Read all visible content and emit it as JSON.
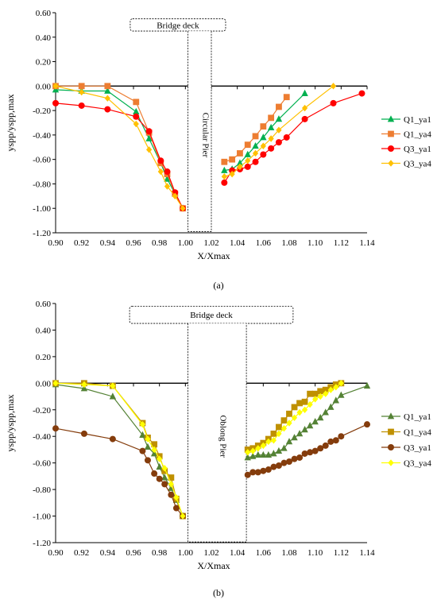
{
  "chart_data": [
    {
      "type": "line",
      "panel_label": "(a)",
      "xlabel": "X/Xmax",
      "ylabel": "yspp/yspp,max",
      "xlim": [
        0.9,
        1.14
      ],
      "ylim": [
        -1.2,
        0.6
      ],
      "x_ticks": [
        "0.90",
        "0.92",
        "0.94",
        "0.96",
        "0.98",
        "1.00",
        "1.02",
        "1.04",
        "1.06",
        "1.08",
        "1.10",
        "1.12",
        "1.14"
      ],
      "y_ticks": [
        "0.60",
        "0.40",
        "0.20",
        "0.00",
        "-0.20",
        "-0.40",
        "-0.60",
        "-0.80",
        "-1.00",
        "-1.20"
      ],
      "grid": false,
      "legend_position": "right",
      "deck_label": "Bridge deck",
      "pier_label": "Circular Pier",
      "series": [
        {
          "name": "Q1_ya1",
          "color": "#00b050",
          "marker": "triangle",
          "points": [
            [
              0.9,
              -0.03
            ],
            [
              0.92,
              -0.04
            ],
            [
              0.94,
              -0.04
            ],
            [
              0.962,
              -0.21
            ],
            [
              0.972,
              -0.43
            ],
            [
              0.981,
              -0.63
            ],
            [
              0.986,
              -0.76
            ],
            [
              0.992,
              -0.88
            ],
            [
              0.998,
              -1.0
            ],
            [
              1.03,
              -0.69
            ],
            [
              1.036,
              -0.68
            ],
            [
              1.042,
              -0.63
            ],
            [
              1.048,
              -0.56
            ],
            [
              1.054,
              -0.49
            ],
            [
              1.06,
              -0.42
            ],
            [
              1.066,
              -0.34
            ],
            [
              1.072,
              -0.27
            ],
            [
              1.092,
              -0.06
            ]
          ]
        },
        {
          "name": "Q1_ya4",
          "color": "#ed7d31",
          "marker": "square",
          "points": [
            [
              0.9,
              0.0
            ],
            [
              0.92,
              0.0
            ],
            [
              0.94,
              0.0
            ],
            [
              0.962,
              -0.13
            ],
            [
              0.972,
              -0.38
            ],
            [
              0.981,
              -0.63
            ],
            [
              0.986,
              -0.72
            ],
            [
              0.992,
              -0.88
            ],
            [
              0.998,
              -1.0
            ],
            [
              1.03,
              -0.62
            ],
            [
              1.036,
              -0.6
            ],
            [
              1.042,
              -0.55
            ],
            [
              1.048,
              -0.48
            ],
            [
              1.054,
              -0.41
            ],
            [
              1.06,
              -0.33
            ],
            [
              1.066,
              -0.26
            ],
            [
              1.072,
              -0.17
            ],
            [
              1.078,
              -0.09
            ]
          ]
        },
        {
          "name": "Q3_ya1",
          "color": "#ff0000",
          "marker": "circle",
          "points": [
            [
              0.9,
              -0.14
            ],
            [
              0.92,
              -0.16
            ],
            [
              0.94,
              -0.19
            ],
            [
              0.962,
              -0.25
            ],
            [
              0.972,
              -0.37
            ],
            [
              0.981,
              -0.61
            ],
            [
              0.986,
              -0.7
            ],
            [
              0.992,
              -0.87
            ],
            [
              0.998,
              -1.0
            ],
            [
              1.03,
              -0.79
            ],
            [
              1.036,
              -0.69
            ],
            [
              1.042,
              -0.68
            ],
            [
              1.048,
              -0.66
            ],
            [
              1.054,
              -0.62
            ],
            [
              1.06,
              -0.56
            ],
            [
              1.066,
              -0.51
            ],
            [
              1.072,
              -0.46
            ],
            [
              1.078,
              -0.42
            ],
            [
              1.092,
              -0.27
            ],
            [
              1.114,
              -0.14
            ],
            [
              1.136,
              -0.06
            ]
          ]
        },
        {
          "name": "Q3_ya4",
          "color": "#ffc000",
          "marker": "diamond",
          "points": [
            [
              0.9,
              0.0
            ],
            [
              0.92,
              -0.05
            ],
            [
              0.94,
              -0.1
            ],
            [
              0.962,
              -0.31
            ],
            [
              0.972,
              -0.52
            ],
            [
              0.981,
              -0.7
            ],
            [
              0.986,
              -0.82
            ],
            [
              0.992,
              -0.9
            ],
            [
              0.998,
              -1.0
            ],
            [
              1.03,
              -0.74
            ],
            [
              1.036,
              -0.72
            ],
            [
              1.042,
              -0.66
            ],
            [
              1.048,
              -0.61
            ],
            [
              1.054,
              -0.55
            ],
            [
              1.06,
              -0.49
            ],
            [
              1.066,
              -0.43
            ],
            [
              1.072,
              -0.36
            ],
            [
              1.092,
              -0.18
            ],
            [
              1.114,
              0.0
            ]
          ]
        }
      ]
    },
    {
      "type": "line",
      "panel_label": "(b)",
      "xlabel": "X/Xmax",
      "ylabel": "yspp/yspp,max",
      "xlim": [
        0.9,
        1.14
      ],
      "ylim": [
        -1.2,
        0.6
      ],
      "x_ticks": [
        "0.90",
        "0.92",
        "0.94",
        "0.96",
        "0.98",
        "1.00",
        "1.02",
        "1.04",
        "1.06",
        "1.08",
        "1.10",
        "1.12",
        "1.14"
      ],
      "y_ticks": [
        "0.60",
        "0.40",
        "0.20",
        "0.00",
        "-0.20",
        "-0.40",
        "-0.60",
        "-0.80",
        "-1.00",
        "-1.20"
      ],
      "grid": false,
      "legend_position": "right",
      "deck_label": "Bridge deck",
      "pier_label": "Oblong Pier",
      "series": [
        {
          "name": "Q1_ya1",
          "color": "#548235",
          "marker": "triangle",
          "points": [
            [
              0.9,
              -0.01
            ],
            [
              0.922,
              -0.04
            ],
            [
              0.944,
              -0.1
            ],
            [
              0.967,
              -0.39
            ],
            [
              0.971,
              -0.48
            ],
            [
              0.976,
              -0.53
            ],
            [
              0.98,
              -0.63
            ],
            [
              0.984,
              -0.71
            ],
            [
              0.989,
              -0.79
            ],
            [
              0.993,
              -0.88
            ],
            [
              0.998,
              -1.0
            ],
            [
              1.048,
              -0.56
            ],
            [
              1.052,
              -0.55
            ],
            [
              1.056,
              -0.54
            ],
            [
              1.06,
              -0.54
            ],
            [
              1.064,
              -0.54
            ],
            [
              1.068,
              -0.53
            ],
            [
              1.072,
              -0.51
            ],
            [
              1.076,
              -0.49
            ],
            [
              1.08,
              -0.44
            ],
            [
              1.084,
              -0.41
            ],
            [
              1.088,
              -0.38
            ],
            [
              1.092,
              -0.35
            ],
            [
              1.096,
              -0.32
            ],
            [
              1.1,
              -0.29
            ],
            [
              1.104,
              -0.26
            ],
            [
              1.108,
              -0.22
            ],
            [
              1.112,
              -0.18
            ],
            [
              1.116,
              -0.13
            ],
            [
              1.12,
              -0.09
            ],
            [
              1.14,
              -0.02
            ]
          ]
        },
        {
          "name": "Q1_ya4",
          "color": "#bf9000",
          "marker": "square",
          "points": [
            [
              0.9,
              0.0
            ],
            [
              0.922,
              0.0
            ],
            [
              0.944,
              -0.02
            ],
            [
              0.967,
              -0.3
            ],
            [
              0.971,
              -0.41
            ],
            [
              0.976,
              -0.46
            ],
            [
              0.98,
              -0.55
            ],
            [
              0.984,
              -0.66
            ],
            [
              0.989,
              -0.71
            ],
            [
              0.993,
              -0.87
            ],
            [
              0.998,
              -1.0
            ],
            [
              1.048,
              -0.5
            ],
            [
              1.052,
              -0.49
            ],
            [
              1.056,
              -0.47
            ],
            [
              1.06,
              -0.45
            ],
            [
              1.064,
              -0.42
            ],
            [
              1.068,
              -0.38
            ],
            [
              1.072,
              -0.33
            ],
            [
              1.076,
              -0.28
            ],
            [
              1.08,
              -0.23
            ],
            [
              1.084,
              -0.18
            ],
            [
              1.088,
              -0.15
            ],
            [
              1.092,
              -0.14
            ],
            [
              1.096,
              -0.08
            ],
            [
              1.1,
              -0.08
            ],
            [
              1.104,
              -0.06
            ],
            [
              1.108,
              -0.05
            ],
            [
              1.112,
              -0.03
            ],
            [
              1.116,
              -0.01
            ],
            [
              1.12,
              0.0
            ]
          ]
        },
        {
          "name": "Q3_ya1",
          "color": "#843c0c",
          "marker": "circle",
          "points": [
            [
              0.9,
              -0.34
            ],
            [
              0.922,
              -0.38
            ],
            [
              0.944,
              -0.42
            ],
            [
              0.967,
              -0.51
            ],
            [
              0.971,
              -0.58
            ],
            [
              0.976,
              -0.68
            ],
            [
              0.98,
              -0.72
            ],
            [
              0.984,
              -0.76
            ],
            [
              0.989,
              -0.84
            ],
            [
              0.993,
              -0.94
            ],
            [
              0.998,
              -1.0
            ],
            [
              1.048,
              -0.69
            ],
            [
              1.052,
              -0.67
            ],
            [
              1.056,
              -0.67
            ],
            [
              1.06,
              -0.66
            ],
            [
              1.064,
              -0.65
            ],
            [
              1.068,
              -0.63
            ],
            [
              1.072,
              -0.62
            ],
            [
              1.076,
              -0.6
            ],
            [
              1.08,
              -0.59
            ],
            [
              1.084,
              -0.57
            ],
            [
              1.088,
              -0.56
            ],
            [
              1.092,
              -0.53
            ],
            [
              1.096,
              -0.52
            ],
            [
              1.1,
              -0.51
            ],
            [
              1.104,
              -0.49
            ],
            [
              1.108,
              -0.47
            ],
            [
              1.112,
              -0.44
            ],
            [
              1.116,
              -0.43
            ],
            [
              1.12,
              -0.4
            ],
            [
              1.14,
              -0.31
            ]
          ]
        },
        {
          "name": "Q3_ya4",
          "color": "#ffff00",
          "marker": "diamond",
          "points": [
            [
              0.9,
              0.0
            ],
            [
              0.922,
              -0.01
            ],
            [
              0.944,
              -0.02
            ],
            [
              0.967,
              -0.31
            ],
            [
              0.971,
              -0.42
            ],
            [
              0.976,
              -0.5
            ],
            [
              0.98,
              -0.57
            ],
            [
              0.984,
              -0.64
            ],
            [
              0.989,
              -0.76
            ],
            [
              0.993,
              -0.86
            ],
            [
              0.998,
              -1.0
            ],
            [
              1.048,
              -0.52
            ],
            [
              1.052,
              -0.51
            ],
            [
              1.056,
              -0.49
            ],
            [
              1.06,
              -0.47
            ],
            [
              1.064,
              -0.44
            ],
            [
              1.068,
              -0.43
            ],
            [
              1.072,
              -0.38
            ],
            [
              1.076,
              -0.34
            ],
            [
              1.08,
              -0.3
            ],
            [
              1.084,
              -0.26
            ],
            [
              1.088,
              -0.22
            ],
            [
              1.092,
              -0.2
            ],
            [
              1.096,
              -0.16
            ],
            [
              1.1,
              -0.12
            ],
            [
              1.104,
              -0.1
            ],
            [
              1.108,
              -0.08
            ],
            [
              1.112,
              -0.05
            ],
            [
              1.116,
              -0.03
            ],
            [
              1.12,
              0.0
            ]
          ]
        }
      ]
    }
  ]
}
